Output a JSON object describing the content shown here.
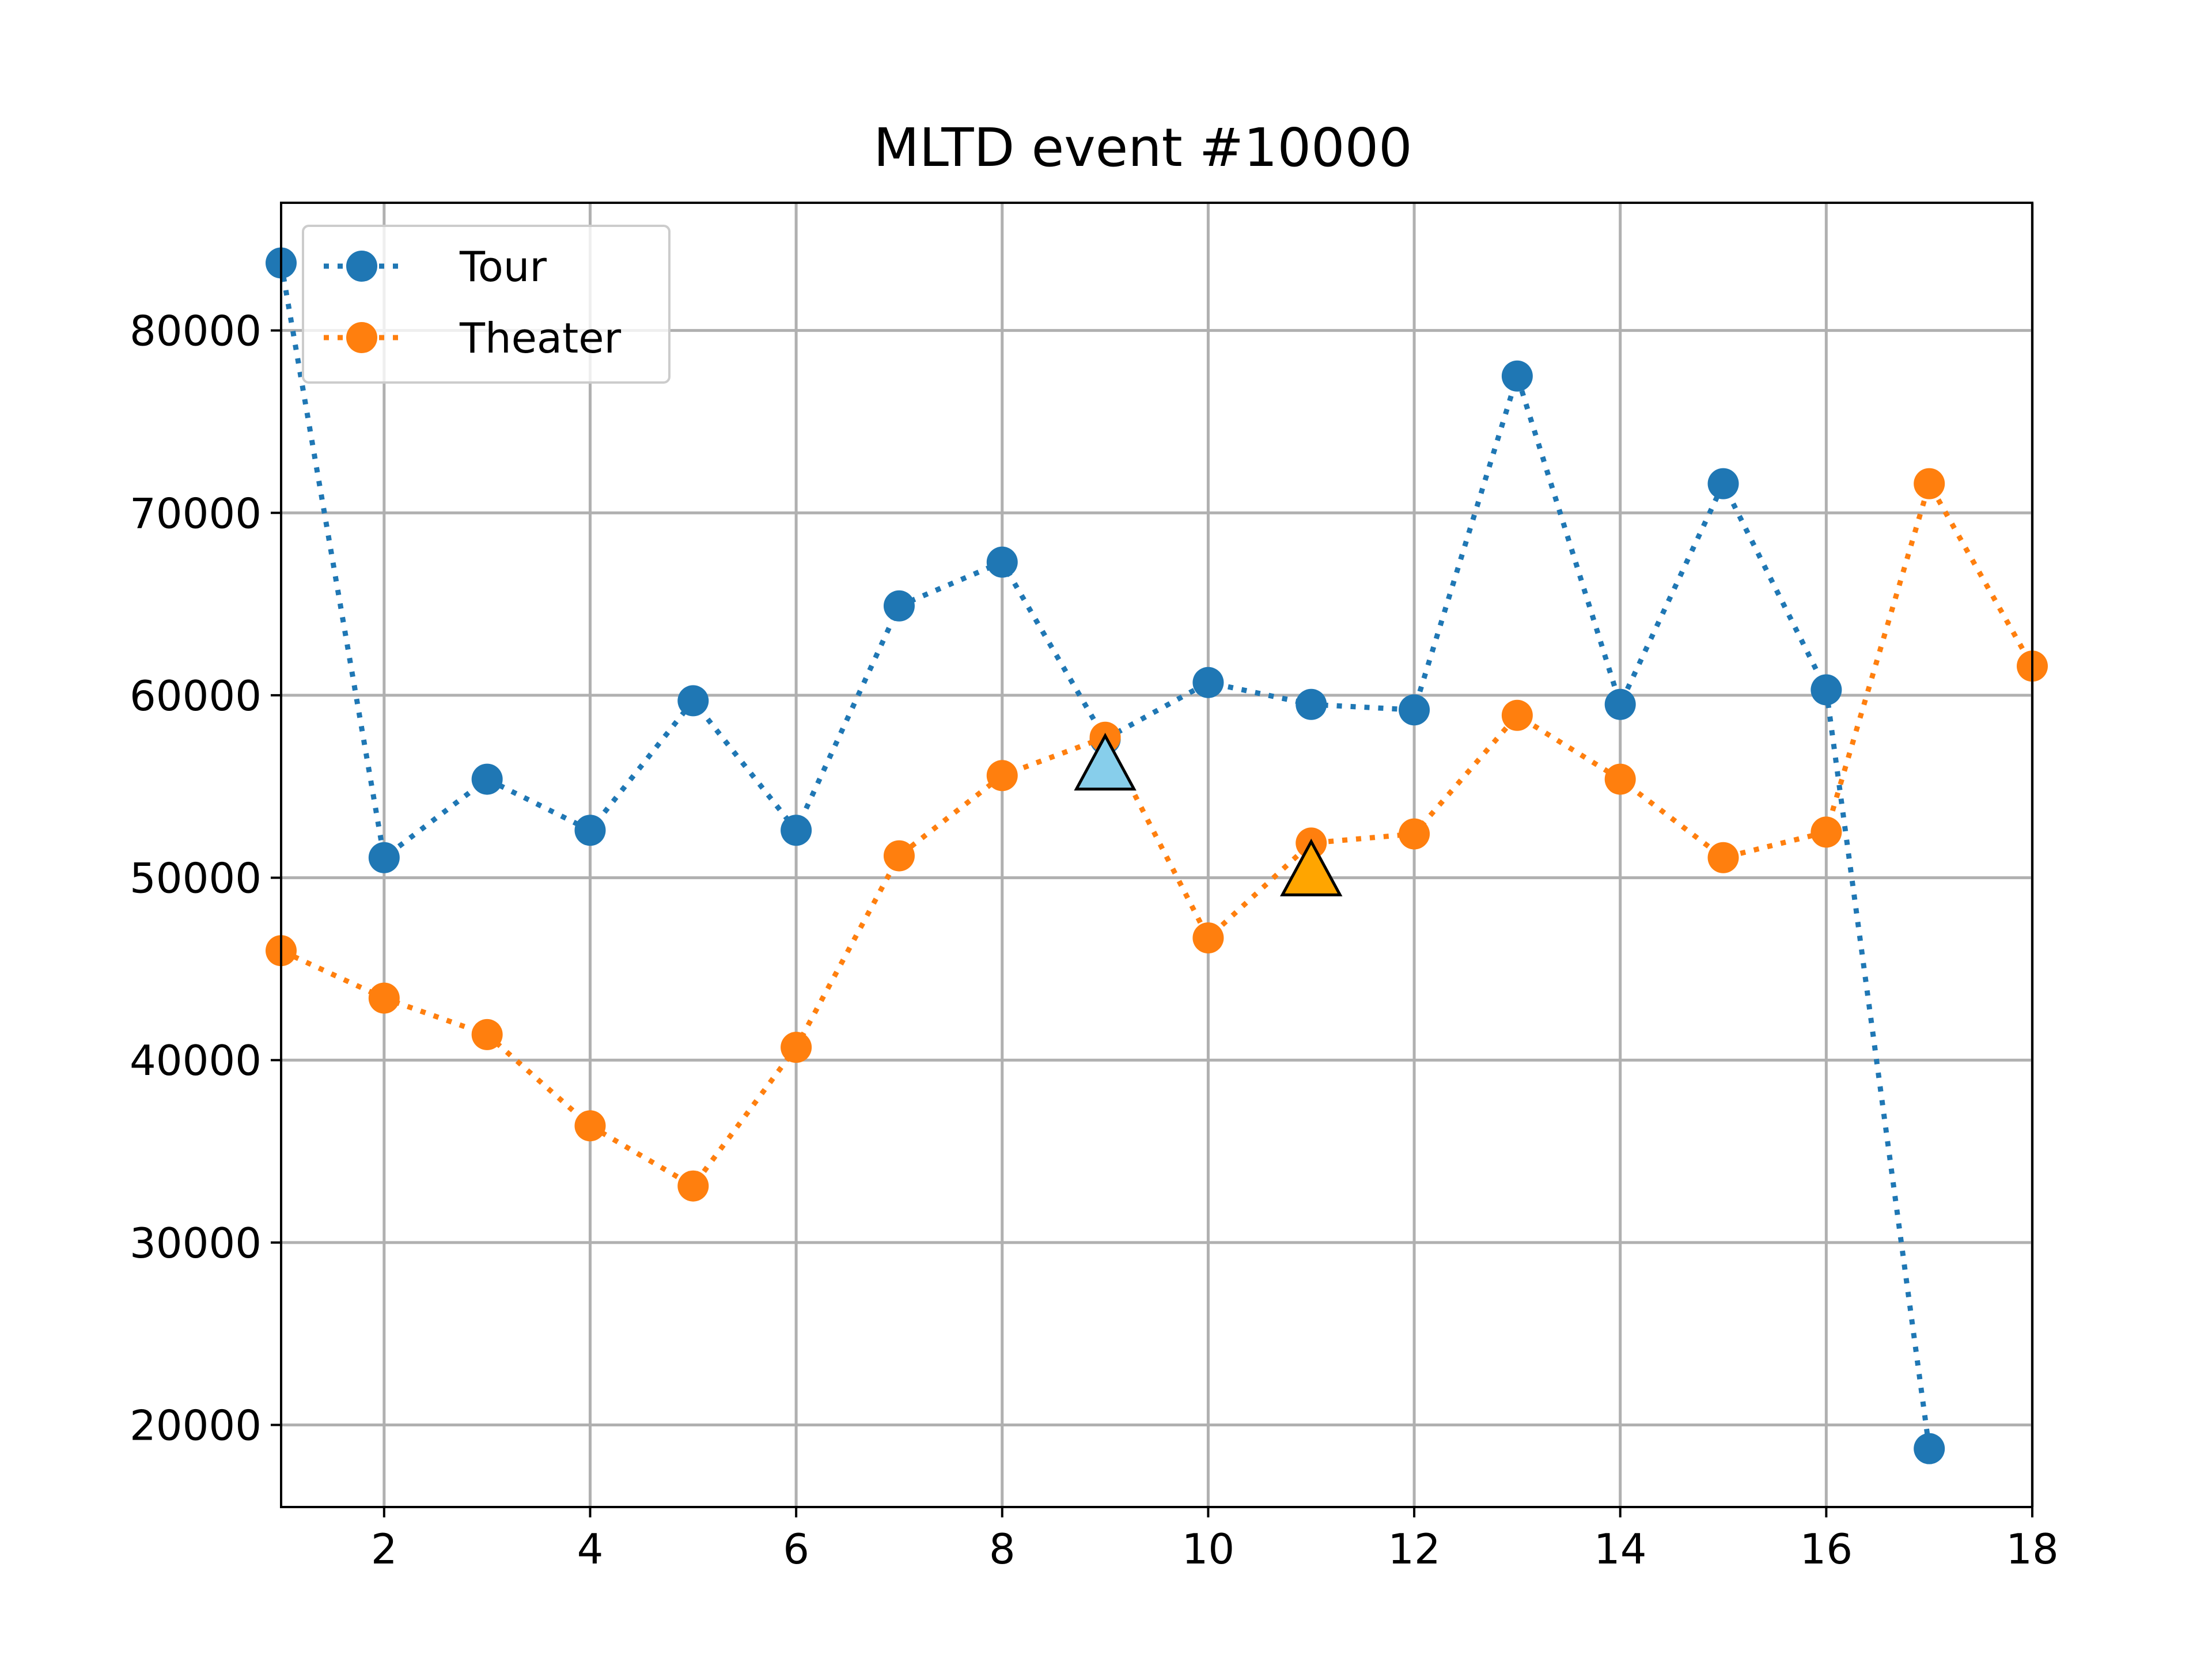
{
  "chart_data": {
    "type": "line",
    "title": "MLTD event #10000",
    "xlabel": "",
    "ylabel": "",
    "xlim": [
      1,
      18
    ],
    "ylim": [
      15500,
      87000
    ],
    "x_ticks": [
      2,
      4,
      6,
      8,
      10,
      12,
      14,
      16,
      18
    ],
    "y_ticks": [
      20000,
      30000,
      40000,
      50000,
      60000,
      70000,
      80000
    ],
    "grid": true,
    "legend_position": "top-left",
    "series": [
      {
        "name": "Tour",
        "color": "#1f77b4",
        "linestyle": "dotted",
        "marker": "circle",
        "x": [
          1,
          2,
          3,
          4,
          5,
          6,
          7,
          8,
          9,
          10,
          11,
          12,
          13,
          14,
          15,
          16,
          17
        ],
        "y": [
          83700,
          51100,
          55400,
          52600,
          59700,
          52600,
          64900,
          67300,
          57600,
          60700,
          59500,
          59200,
          77500,
          59500,
          71600,
          60300,
          18700
        ]
      },
      {
        "name": "Theater",
        "color": "#ff7f0e",
        "linestyle": "dotted",
        "marker": "circle",
        "x": [
          1,
          2,
          3,
          4,
          5,
          6,
          7,
          8,
          9,
          10,
          11,
          12,
          13,
          14,
          15,
          16,
          17,
          18
        ],
        "y": [
          46000,
          43400,
          41400,
          36400,
          33100,
          40700,
          51200,
          55600,
          57700,
          46700,
          51900,
          52400,
          58900,
          55400,
          51100,
          52500,
          71600,
          61600
        ]
      }
    ],
    "markers": [
      {
        "label": "tour-triangle",
        "x": 9,
        "y": 56200,
        "color": "#87ceeb",
        "shape": "triangle"
      },
      {
        "label": "theater-triangle",
        "x": 11,
        "y": 50400,
        "color": "#ffa500",
        "shape": "triangle"
      }
    ]
  }
}
